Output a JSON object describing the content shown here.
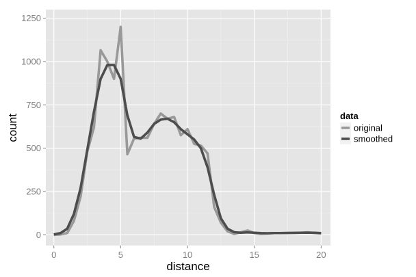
{
  "chart_data": {
    "type": "line",
    "title": "",
    "xlabel": "distance",
    "ylabel": "count",
    "xlim": [
      -0.6,
      20.7
    ],
    "ylim": [
      -62,
      1300
    ],
    "x_ticks": [
      0,
      5,
      10,
      15,
      20
    ],
    "x_tick_labels": [
      "0",
      "5",
      "10",
      "15",
      "20"
    ],
    "y_ticks": [
      0,
      250,
      500,
      750,
      1000,
      1250
    ],
    "y_tick_labels": [
      "0",
      "250",
      "500",
      "750",
      "1000",
      "1250"
    ],
    "grid": true,
    "legend": {
      "title": "data",
      "position": "right"
    },
    "colors": {
      "panel": "#e5e5e5",
      "grid_major": "#ffffff",
      "grid_minor": "#f2f2f2",
      "original": "#999999",
      "smoothed": "#4d4d4d"
    },
    "x": [
      0,
      0.5,
      1,
      1.5,
      2,
      2.5,
      3,
      3.5,
      4,
      4.5,
      5,
      5.5,
      6,
      6.5,
      7,
      7.5,
      8,
      8.5,
      9,
      9.5,
      10,
      10.5,
      11,
      11.5,
      12,
      12.5,
      13,
      13.5,
      14,
      14.5,
      15,
      15.5,
      16,
      16.5,
      17,
      17.5,
      18,
      18.5,
      19,
      19.5,
      20
    ],
    "series": [
      {
        "name": "original",
        "values": [
          0,
          2,
          10,
          80,
          220,
          480,
          620,
          1065,
          1000,
          900,
          1200,
          465,
          555,
          560,
          560,
          640,
          700,
          670,
          680,
          575,
          610,
          525,
          515,
          470,
          160,
          70,
          20,
          5,
          15,
          25,
          10,
          5,
          8,
          10,
          10,
          10,
          12,
          12,
          15,
          10,
          8
        ]
      },
      {
        "name": "smoothed",
        "values": [
          2,
          10,
          35,
          120,
          270,
          490,
          710,
          900,
          980,
          980,
          900,
          690,
          565,
          555,
          590,
          640,
          665,
          670,
          650,
          610,
          580,
          550,
          500,
          390,
          230,
          95,
          35,
          15,
          12,
          14,
          12,
          10,
          9,
          10,
          10,
          11,
          11,
          12,
          12,
          12,
          10
        ]
      }
    ]
  }
}
